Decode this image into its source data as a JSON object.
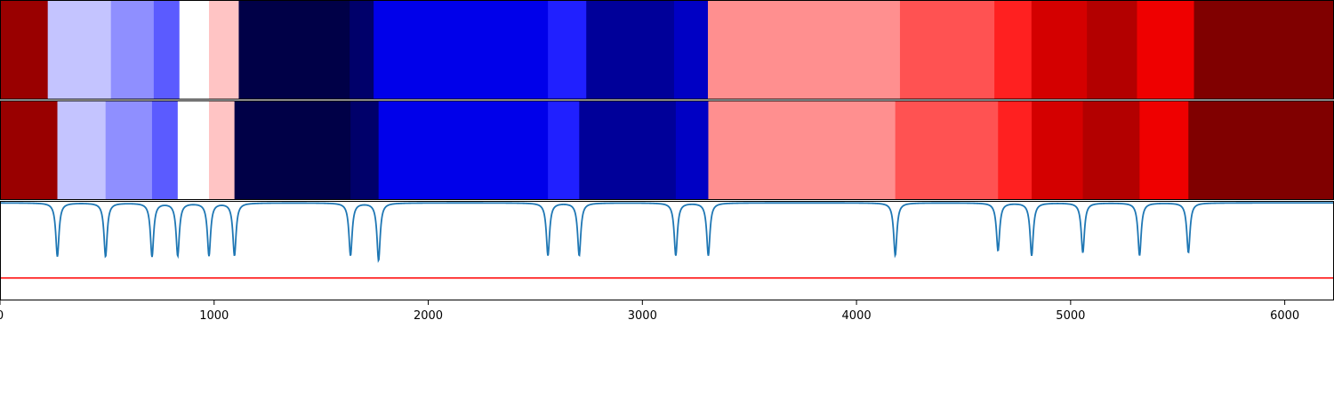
{
  "chart_data": {
    "type": "heatmap",
    "title": "",
    "xlabel": "",
    "ylabel": "",
    "xlim": [
      0,
      6230
    ],
    "xticks": [
      0,
      1000,
      2000,
      3000,
      4000,
      5000,
      6000
    ],
    "xtick_labels": [
      "0",
      "1000",
      "2000",
      "3000",
      "4000",
      "5000",
      "6000"
    ],
    "colormap": "seismic",
    "rows": [
      {
        "segments": [
          {
            "start": 0,
            "end": 223,
            "color": "#990000"
          },
          {
            "start": 223,
            "end": 518,
            "color": "#c4c4ff"
          },
          {
            "start": 518,
            "end": 718,
            "color": "#8f8fff"
          },
          {
            "start": 718,
            "end": 838,
            "color": "#5b5bff"
          },
          {
            "start": 838,
            "end": 976,
            "color": "#ffffff"
          },
          {
            "start": 976,
            "end": 1115,
            "color": "#ffc4c4"
          },
          {
            "start": 1115,
            "end": 1633,
            "color": "#000047"
          },
          {
            "start": 1633,
            "end": 1745,
            "color": "#00006a"
          },
          {
            "start": 1745,
            "end": 2559,
            "color": "#0000ea"
          },
          {
            "start": 2559,
            "end": 2738,
            "color": "#2020ff"
          },
          {
            "start": 2738,
            "end": 3148,
            "color": "#000099"
          },
          {
            "start": 3148,
            "end": 3306,
            "color": "#0000c4"
          },
          {
            "start": 3306,
            "end": 4203,
            "color": "#ff8f8f"
          },
          {
            "start": 4203,
            "end": 4644,
            "color": "#ff5252"
          },
          {
            "start": 4644,
            "end": 4817,
            "color": "#ff2020"
          },
          {
            "start": 4817,
            "end": 5076,
            "color": "#d40000"
          },
          {
            "start": 5076,
            "end": 5310,
            "color": "#b30000"
          },
          {
            "start": 5310,
            "end": 5576,
            "color": "#ef0000"
          },
          {
            "start": 5576,
            "end": 6230,
            "color": "#800000"
          }
        ]
      },
      {
        "segments": [
          {
            "start": 0,
            "end": 268,
            "color": "#990000"
          },
          {
            "start": 268,
            "end": 493,
            "color": "#c4c4ff"
          },
          {
            "start": 493,
            "end": 710,
            "color": "#8f8fff"
          },
          {
            "start": 710,
            "end": 830,
            "color": "#5b5bff"
          },
          {
            "start": 830,
            "end": 976,
            "color": "#ffffff"
          },
          {
            "start": 976,
            "end": 1095,
            "color": "#ffc4c4"
          },
          {
            "start": 1095,
            "end": 1637,
            "color": "#000047"
          },
          {
            "start": 1637,
            "end": 1768,
            "color": "#00006a"
          },
          {
            "start": 1768,
            "end": 2559,
            "color": "#0000ea"
          },
          {
            "start": 2559,
            "end": 2705,
            "color": "#2020ff"
          },
          {
            "start": 2705,
            "end": 3156,
            "color": "#000099"
          },
          {
            "start": 3156,
            "end": 3308,
            "color": "#0000c4"
          },
          {
            "start": 3308,
            "end": 4181,
            "color": "#ff8f8f"
          },
          {
            "start": 4181,
            "end": 4661,
            "color": "#ff5252"
          },
          {
            "start": 4661,
            "end": 4818,
            "color": "#ff2020"
          },
          {
            "start": 4818,
            "end": 5057,
            "color": "#d40000"
          },
          {
            "start": 5057,
            "end": 5322,
            "color": "#b30000"
          },
          {
            "start": 5322,
            "end": 5550,
            "color": "#ef0000"
          },
          {
            "start": 5550,
            "end": 6230,
            "color": "#800000"
          }
        ]
      }
    ],
    "line_series": {
      "color": "#1f77b4",
      "baseline": 0.0,
      "ylim": [
        -1.0,
        0.02
      ],
      "dips": [
        {
          "x": 268,
          "depth": 0.55
        },
        {
          "x": 493,
          "depth": 0.55
        },
        {
          "x": 710,
          "depth": 0.55
        },
        {
          "x": 830,
          "depth": 0.54
        },
        {
          "x": 976,
          "depth": 0.54
        },
        {
          "x": 1095,
          "depth": 0.54
        },
        {
          "x": 1637,
          "depth": 0.54
        },
        {
          "x": 1768,
          "depth": 0.59
        },
        {
          "x": 2559,
          "depth": 0.54
        },
        {
          "x": 2705,
          "depth": 0.54
        },
        {
          "x": 3156,
          "depth": 0.54
        },
        {
          "x": 3308,
          "depth": 0.54
        },
        {
          "x": 4181,
          "depth": 0.54
        },
        {
          "x": 4661,
          "depth": 0.49
        },
        {
          "x": 4818,
          "depth": 0.54
        },
        {
          "x": 5057,
          "depth": 0.51
        },
        {
          "x": 5322,
          "depth": 0.54
        },
        {
          "x": 5550,
          "depth": 0.51
        }
      ]
    },
    "reference_line": {
      "y": -0.77,
      "color": "#ff0000"
    },
    "grid": false,
    "legend": "none"
  }
}
